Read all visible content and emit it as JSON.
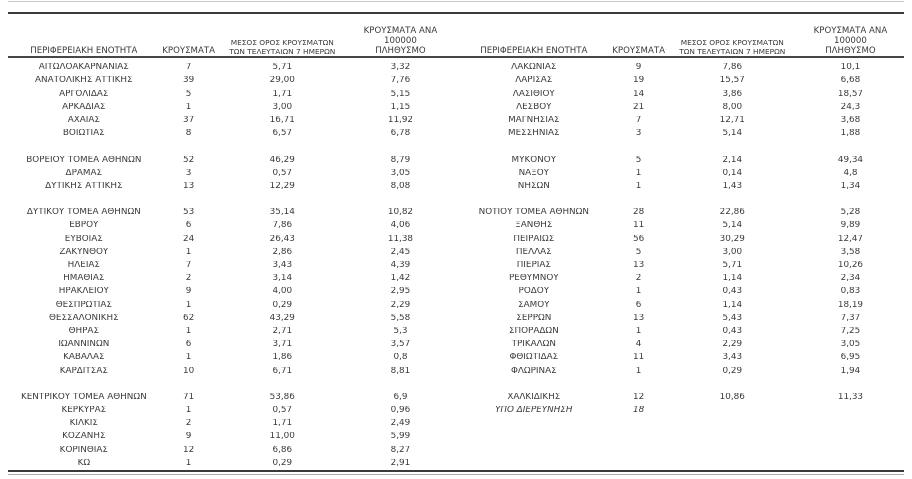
{
  "page": {
    "background_color": "#ffffff",
    "text_color": "#3a3a3a",
    "rule_dark_color": "#3b3b3b",
    "rule_light_color": "#c7c7c7"
  },
  "table": {
    "headers": [
      "ΠΕΡΙΦΕΡΕΙΑΚΗ ΕΝΟΤΗΤΑ",
      "ΚΡΟΥΣΜΑΤΑ",
      "ΜΕΣΟΣ ΟΡΟΣ ΚΡΟΥΣΜΑΤΩΝ\nΤΩΝ ΤΕΛΕΥΤΑΙΩΝ 7 ΗΜΕΡΩΝ",
      "ΚΡΟΥΣΜΑΤΑ ΑΝΑ 100000\nΠΛΗΘΥΣΜΟ"
    ],
    "left_groups": [
      {
        "rows": [
          {
            "name": "ΑΙΤΩΛΟΑΚΑΡΝΑΝΙΑΣ",
            "cases": "7",
            "avg7": "5,71",
            "per100k": "3,32",
            "italic": false
          },
          {
            "name": "ΑΝΑΤΟΛΙΚΗΣ ΑΤΤΙΚΗΣ",
            "cases": "39",
            "avg7": "29,00",
            "per100k": "7,76",
            "italic": false
          },
          {
            "name": "ΑΡΓΟΛΙΔΑΣ",
            "cases": "5",
            "avg7": "1,71",
            "per100k": "5,15",
            "italic": false
          },
          {
            "name": "ΑΡΚΑΔΙΑΣ",
            "cases": "1",
            "avg7": "3,00",
            "per100k": "1,15",
            "italic": false
          },
          {
            "name": "ΑΧΑΪΑΣ",
            "cases": "37",
            "avg7": "16,71",
            "per100k": "11,92",
            "italic": false
          },
          {
            "name": "ΒΟΙΩΤΙΑΣ",
            "cases": "8",
            "avg7": "6,57",
            "per100k": "6,78",
            "italic": false
          }
        ]
      },
      {
        "rows": [
          {
            "name": "ΒΟΡΕΙΟΥ ΤΟΜΕΑ ΑΘΗΝΩΝ",
            "cases": "52",
            "avg7": "46,29",
            "per100k": "8,79",
            "italic": false
          },
          {
            "name": "ΔΡΑΜΑΣ",
            "cases": "3",
            "avg7": "0,57",
            "per100k": "3,05",
            "italic": false
          },
          {
            "name": "ΔΥΤΙΚΗΣ ΑΤΤΙΚΗΣ",
            "cases": "13",
            "avg7": "12,29",
            "per100k": "8,08",
            "italic": false
          }
        ]
      },
      {
        "rows": [
          {
            "name": "ΔΥΤΙΚΟΥ ΤΟΜΕΑ ΑΘΗΝΩΝ",
            "cases": "53",
            "avg7": "35,14",
            "per100k": "10,82",
            "italic": false
          },
          {
            "name": "ΕΒΡΟΥ",
            "cases": "6",
            "avg7": "7,86",
            "per100k": "4,06",
            "italic": false
          },
          {
            "name": "ΕΥΒΟΙΑΣ",
            "cases": "24",
            "avg7": "26,43",
            "per100k": "11,38",
            "italic": false
          },
          {
            "name": "ΖΑΚΥΝΘΟΥ",
            "cases": "1",
            "avg7": "2,86",
            "per100k": "2,45",
            "italic": false
          },
          {
            "name": "ΗΛΕΙΑΣ",
            "cases": "7",
            "avg7": "3,43",
            "per100k": "4,39",
            "italic": false
          },
          {
            "name": "ΗΜΑΘΙΑΣ",
            "cases": "2",
            "avg7": "3,14",
            "per100k": "1,42",
            "italic": false
          },
          {
            "name": "ΗΡΑΚΛΕΙΟΥ",
            "cases": "9",
            "avg7": "4,00",
            "per100k": "2,95",
            "italic": false
          },
          {
            "name": "ΘΕΣΠΡΩΤΙΑΣ",
            "cases": "1",
            "avg7": "0,29",
            "per100k": "2,29",
            "italic": false
          },
          {
            "name": "ΘΕΣΣΑΛΟΝΙΚΗΣ",
            "cases": "62",
            "avg7": "43,29",
            "per100k": "5,58",
            "italic": false
          },
          {
            "name": "ΘΗΡΑΣ",
            "cases": "1",
            "avg7": "2,71",
            "per100k": "5,3",
            "italic": false
          },
          {
            "name": "ΙΩΑΝΝΙΝΩΝ",
            "cases": "6",
            "avg7": "3,71",
            "per100k": "3,57",
            "italic": false
          },
          {
            "name": "ΚΑΒΑΛΑΣ",
            "cases": "1",
            "avg7": "1,86",
            "per100k": "0,8",
            "italic": false
          },
          {
            "name": "ΚΑΡΔΙΤΣΑΣ",
            "cases": "10",
            "avg7": "6,71",
            "per100k": "8,81",
            "italic": false
          }
        ]
      },
      {
        "rows": [
          {
            "name": "ΚΕΝΤΡΙΚΟΥ ΤΟΜΕΑ ΑΘΗΝΩΝ",
            "cases": "71",
            "avg7": "53,86",
            "per100k": "6,9",
            "italic": false
          },
          {
            "name": "ΚΕΡΚΥΡΑΣ",
            "cases": "1",
            "avg7": "0,57",
            "per100k": "0,96",
            "italic": false
          },
          {
            "name": "ΚΙΛΚΙΣ",
            "cases": "2",
            "avg7": "1,71",
            "per100k": "2,49",
            "italic": false
          },
          {
            "name": "ΚΟΖΑΝΗΣ",
            "cases": "9",
            "avg7": "11,00",
            "per100k": "5,99",
            "italic": false
          },
          {
            "name": "ΚΟΡΙΝΘΙΑΣ",
            "cases": "12",
            "avg7": "6,86",
            "per100k": "8,27",
            "italic": false
          },
          {
            "name": "ΚΩ",
            "cases": "1",
            "avg7": "0,29",
            "per100k": "2,91",
            "italic": false
          }
        ]
      }
    ],
    "right_groups": [
      {
        "rows": [
          {
            "name": "ΛΑΚΩΝΙΑΣ",
            "cases": "9",
            "avg7": "7,86",
            "per100k": "10,1",
            "italic": false
          },
          {
            "name": "ΛΑΡΙΣΑΣ",
            "cases": "19",
            "avg7": "15,57",
            "per100k": "6,68",
            "italic": false
          },
          {
            "name": "ΛΑΣΙΘΙΟΥ",
            "cases": "14",
            "avg7": "3,86",
            "per100k": "18,57",
            "italic": false
          },
          {
            "name": "ΛΕΣΒΟΥ",
            "cases": "21",
            "avg7": "8,00",
            "per100k": "24,3",
            "italic": false
          },
          {
            "name": "ΜΑΓΝΗΣΙΑΣ",
            "cases": "7",
            "avg7": "12,71",
            "per100k": "3,68",
            "italic": false
          },
          {
            "name": "ΜΕΣΣΗΝΙΑΣ",
            "cases": "3",
            "avg7": "5,14",
            "per100k": "1,88",
            "italic": false
          }
        ]
      },
      {
        "rows": [
          {
            "name": "ΜΥΚΟΝΟΥ",
            "cases": "5",
            "avg7": "2,14",
            "per100k": "49,34",
            "italic": false
          },
          {
            "name": "ΝΑΞΟΥ",
            "cases": "1",
            "avg7": "0,14",
            "per100k": "4,8",
            "italic": false
          },
          {
            "name": "ΝΗΣΩΝ",
            "cases": "1",
            "avg7": "1,43",
            "per100k": "1,34",
            "italic": false
          }
        ]
      },
      {
        "rows": [
          {
            "name": "ΝΟΤΙΟΥ ΤΟΜΕΑ ΑΘΗΝΩΝ",
            "cases": "28",
            "avg7": "22,86",
            "per100k": "5,28",
            "italic": false
          },
          {
            "name": "ΞΑΝΘΗΣ",
            "cases": "11",
            "avg7": "5,14",
            "per100k": "9,89",
            "italic": false
          },
          {
            "name": "ΠΕΙΡΑΙΩΣ",
            "cases": "56",
            "avg7": "30,29",
            "per100k": "12,47",
            "italic": false
          },
          {
            "name": "ΠΕΛΛΑΣ",
            "cases": "5",
            "avg7": "3,00",
            "per100k": "3,58",
            "italic": false
          },
          {
            "name": "ΠΙΕΡΙΑΣ",
            "cases": "13",
            "avg7": "5,71",
            "per100k": "10,26",
            "italic": false
          },
          {
            "name": "ΡΕΘΥΜΝΟΥ",
            "cases": "2",
            "avg7": "1,14",
            "per100k": "2,34",
            "italic": false
          },
          {
            "name": "ΡΟΔΟΥ",
            "cases": "1",
            "avg7": "0,43",
            "per100k": "0,83",
            "italic": false
          },
          {
            "name": "ΣΑΜΟΥ",
            "cases": "6",
            "avg7": "1,14",
            "per100k": "18,19",
            "italic": false
          },
          {
            "name": "ΣΕΡΡΩΝ",
            "cases": "13",
            "avg7": "5,43",
            "per100k": "7,37",
            "italic": false
          },
          {
            "name": "ΣΠΟΡΑΔΩΝ",
            "cases": "1",
            "avg7": "0,43",
            "per100k": "7,25",
            "italic": false
          },
          {
            "name": "ΤΡΙΚΑΛΩΝ",
            "cases": "4",
            "avg7": "2,29",
            "per100k": "3,05",
            "italic": false
          },
          {
            "name": "ΦΘΙΩΤΙΔΑΣ",
            "cases": "11",
            "avg7": "3,43",
            "per100k": "6,95",
            "italic": false
          },
          {
            "name": "ΦΛΩΡΙΝΑΣ",
            "cases": "1",
            "avg7": "0,29",
            "per100k": "1,94",
            "italic": false
          }
        ]
      },
      {
        "rows": [
          {
            "name": "ΧΑΛΚΙΔΙΚΗΣ",
            "cases": "12",
            "avg7": "10,86",
            "per100k": "11,33",
            "italic": false
          },
          {
            "name": "ΥΠΟ ΔΙΕΡΕΥΝΗΣΗ",
            "cases": "18",
            "avg7": "",
            "per100k": "",
            "italic": true
          }
        ]
      }
    ]
  }
}
